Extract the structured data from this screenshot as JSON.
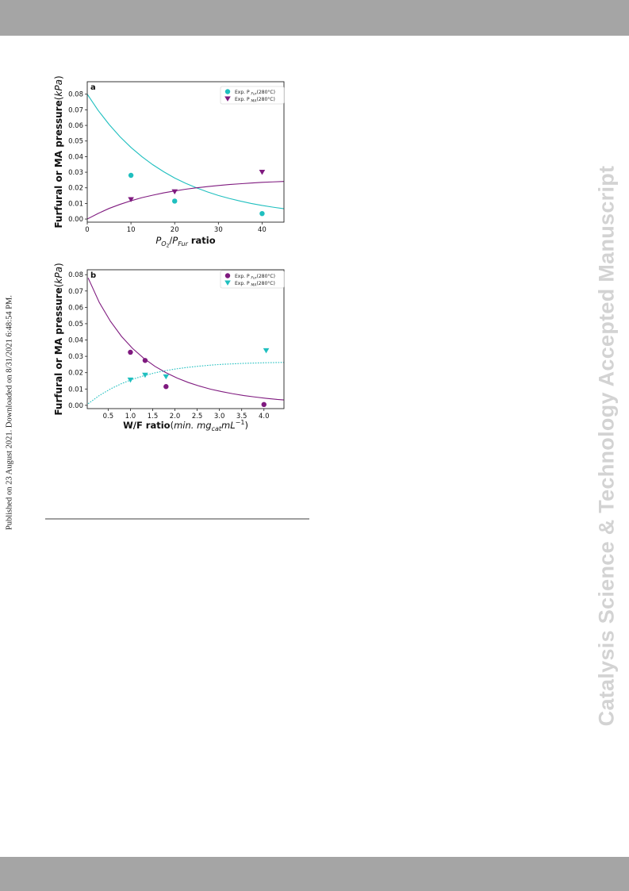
{
  "side_note": "Published on 23 August 2021. Downloaded on 8/31/2021 6:48:54 PM.",
  "watermark": "Catalysis Science & Technology Accepted Manuscript",
  "colors": {
    "teal": "#1fbfbf",
    "purple": "#7f1a7f",
    "bar": "#a5a5a5",
    "watermark": "#d3d3d3"
  },
  "chart_data": [
    {
      "type": "scatter",
      "panel_label": "a",
      "ylabel": "Furfural or MA pressure",
      "ylabel_unit": "kPa",
      "xlabel_base": "P",
      "xlabel_sub1": "O",
      "xlabel_sub1b": "2",
      "xlabel_sub2": "Fur",
      "xlabel_tail": "ratio",
      "xlim": [
        0,
        45
      ],
      "ylim": [
        -0.002,
        0.088
      ],
      "xticks": [
        0,
        10,
        20,
        30,
        40
      ],
      "yticks": [
        0.0,
        0.01,
        0.02,
        0.03,
        0.04,
        0.05,
        0.06,
        0.07,
        0.08
      ],
      "series": [
        {
          "name": "Exp. P",
          "sub": "Fur",
          "temp": "(280°C)",
          "marker": "circle",
          "color": "#1fbfbf",
          "x": [
            10,
            20,
            40
          ],
          "y": [
            0.028,
            0.0115,
            0.0035
          ]
        },
        {
          "name": "Exp. P",
          "sub": "MA",
          "temp": "(280°C)",
          "marker": "triangle-down",
          "color": "#7f1a7f",
          "x": [
            10,
            20,
            40
          ],
          "y": [
            0.0125,
            0.0175,
            0.03
          ]
        }
      ],
      "curves": [
        {
          "color": "#1fbfbf",
          "dash": false,
          "x": [
            0,
            2.5,
            5,
            7.5,
            10,
            12.5,
            15,
            17.5,
            20,
            22.5,
            25,
            27.5,
            30,
            32.5,
            35,
            37.5,
            40,
            42.5,
            45
          ],
          "y": [
            0.08,
            0.0696,
            0.0606,
            0.0527,
            0.0459,
            0.04,
            0.0348,
            0.0303,
            0.0263,
            0.0229,
            0.02,
            0.0174,
            0.0151,
            0.0132,
            0.0115,
            0.01,
            0.0087,
            0.0076,
            0.0066
          ]
        },
        {
          "color": "#7f1a7f",
          "dash": false,
          "x": [
            0,
            2.5,
            5,
            7.5,
            10,
            12.5,
            15,
            17.5,
            20,
            22.5,
            25,
            27.5,
            30,
            32.5,
            35,
            37.5,
            40,
            42.5,
            45
          ],
          "y": [
            0.0,
            0.0036,
            0.0068,
            0.0094,
            0.0117,
            0.0137,
            0.0153,
            0.0168,
            0.018,
            0.0191,
            0.02,
            0.0208,
            0.0215,
            0.0221,
            0.0226,
            0.0231,
            0.0235,
            0.0238,
            0.0241
          ]
        }
      ]
    },
    {
      "type": "scatter",
      "panel_label": "b",
      "ylabel": "Furfural or MA pressure",
      "ylabel_unit": "kPa",
      "xlabel_base": "W/F ratio",
      "xlabel_unit": "min. mg",
      "xlabel_unit_sub": "cat",
      "xlabel_unit_tail": "mL",
      "xlabel_unit_sup": "−1",
      "xlim": [
        0.03,
        4.45
      ],
      "ylim": [
        -0.002,
        0.083
      ],
      "xticks": [
        0.5,
        1.0,
        1.5,
        2.0,
        2.5,
        3.0,
        3.5,
        4.0
      ],
      "yticks": [
        0.0,
        0.01,
        0.02,
        0.03,
        0.04,
        0.05,
        0.06,
        0.07,
        0.08
      ],
      "series": [
        {
          "name": "Exp. P",
          "sub": "Fur",
          "temp": "(280°C)",
          "marker": "circle",
          "color": "#7f1a7f",
          "x": [
            1.0,
            1.33,
            1.8,
            4.0
          ],
          "y": [
            0.0325,
            0.0275,
            0.0115,
            0.0005
          ]
        },
        {
          "name": "Exp. P",
          "sub": "MA",
          "temp": "(280°C)",
          "marker": "triangle-down",
          "color": "#1fbfbf",
          "x": [
            1.0,
            1.33,
            1.8,
            4.05
          ],
          "y": [
            0.0155,
            0.0185,
            0.0175,
            0.0335
          ]
        }
      ],
      "curves": [
        {
          "color": "#7f1a7f",
          "dash": false,
          "x": [
            0.05,
            0.3,
            0.55,
            0.8,
            1.05,
            1.3,
            1.55,
            1.8,
            2.05,
            2.3,
            2.55,
            2.8,
            3.05,
            3.3,
            3.55,
            3.8,
            4.05,
            4.3,
            4.45
          ],
          "y": [
            0.078,
            0.063,
            0.0515,
            0.0422,
            0.0348,
            0.0288,
            0.0239,
            0.02,
            0.0167,
            0.014,
            0.0118,
            0.0099,
            0.0084,
            0.0071,
            0.006,
            0.0051,
            0.0043,
            0.0036,
            0.0033
          ]
        },
        {
          "color": "#1fbfbf",
          "dash": true,
          "x": [
            0.05,
            0.3,
            0.55,
            0.8,
            1.05,
            1.3,
            1.55,
            1.8,
            2.05,
            2.3,
            2.55,
            2.8,
            3.05,
            3.3,
            3.55,
            3.8,
            4.05,
            4.3,
            4.45
          ],
          "y": [
            0.001,
            0.006,
            0.01,
            0.0133,
            0.016,
            0.0181,
            0.0199,
            0.0213,
            0.0224,
            0.0233,
            0.024,
            0.0246,
            0.0251,
            0.0254,
            0.0257,
            0.0259,
            0.0261,
            0.0262,
            0.0263
          ]
        }
      ]
    }
  ]
}
